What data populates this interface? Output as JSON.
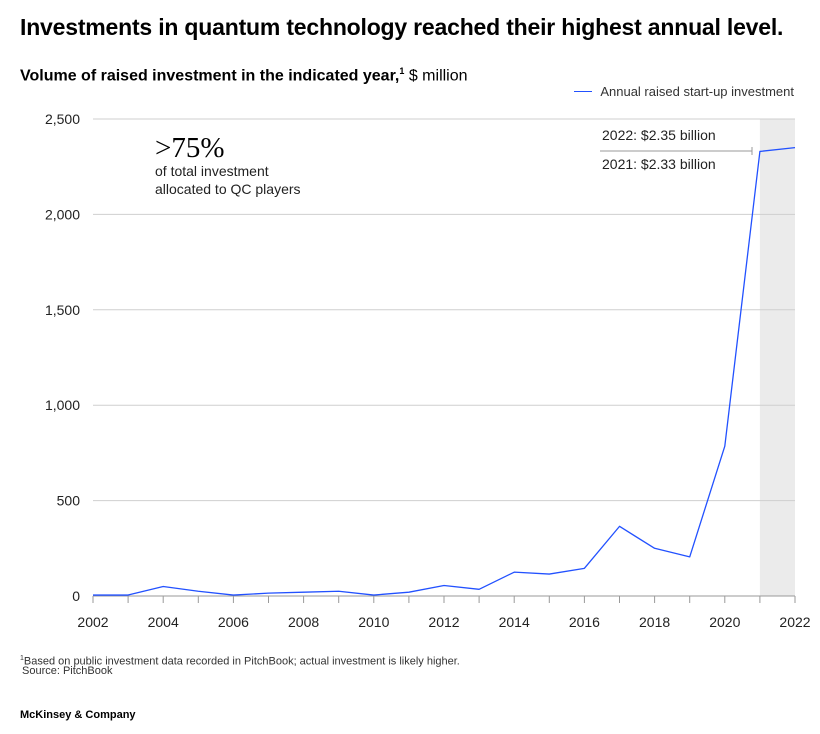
{
  "headline": "Investments in quantum technology reached their highest annual level.",
  "subtitle": {
    "bold": "Volume of raised investment in the indicated year,",
    "sup": "1",
    "unit": " $ million"
  },
  "legend": {
    "label": "Annual raised start-up investment",
    "color": "#2251ff"
  },
  "callout": {
    "big": ">75%",
    "line1": "of total investment",
    "line2": "allocated to QC players"
  },
  "annotations": {
    "y2022": "2022:  $2.35 billion",
    "y2021": "2021:  $2.33 billion"
  },
  "footnote": {
    "sup": "1",
    "text": "Based on public investment data recorded in PitchBook; actual investment is likely higher."
  },
  "source": "Source: PitchBook",
  "brand": "McKinsey & Company",
  "chart_data": {
    "type": "line",
    "title": "Volume of raised investment in the indicated year, $ million",
    "xlabel": "",
    "ylabel": "$ million",
    "x": [
      2002,
      2003,
      2004,
      2005,
      2006,
      2007,
      2008,
      2009,
      2010,
      2011,
      2012,
      2013,
      2014,
      2015,
      2016,
      2017,
      2018,
      2019,
      2020,
      2021,
      2022
    ],
    "series": [
      {
        "name": "Annual raised start-up investment",
        "values": [
          5,
          5,
          50,
          25,
          5,
          15,
          20,
          25,
          5,
          20,
          55,
          35,
          125,
          115,
          145,
          365,
          250,
          205,
          785,
          2330,
          2350
        ]
      }
    ],
    "xlim": [
      2002,
      2022
    ],
    "ylim": [
      0,
      2500
    ],
    "yticks": [
      0,
      500,
      1000,
      1500,
      2000,
      2500
    ],
    "ytick_labels": [
      "0",
      "500",
      "1,000",
      "1,500",
      "2,000",
      "2,500"
    ],
    "xticks": [
      2002,
      2004,
      2006,
      2008,
      2010,
      2012,
      2014,
      2016,
      2018,
      2020,
      2022
    ],
    "highlight_range": [
      2021,
      2022
    ],
    "grid": true
  }
}
